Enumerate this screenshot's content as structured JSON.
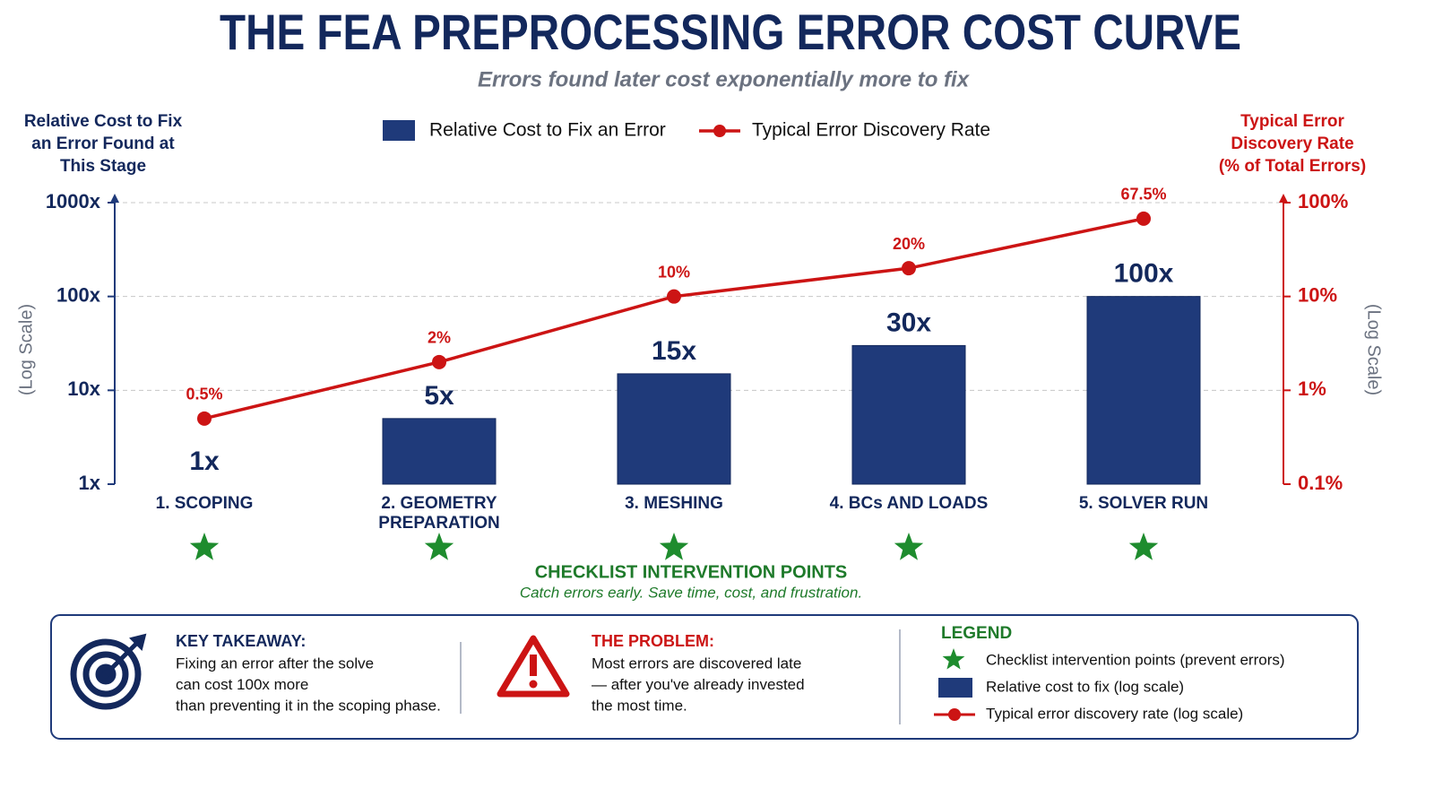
{
  "title": "THE FEA PREPROCESSING ERROR COST CURVE",
  "subtitle": "Errors found later cost exponentially more to fix",
  "chart_data": {
    "type": "combo",
    "y_label": [
      "Relative Cost to Fix",
      "an Error Found at",
      "This Stage"
    ],
    "y2_label": [
      "Typical Error",
      "Discovery Rate",
      "(% of Total Errors)"
    ],
    "scale_note": "(Log Scale)",
    "log_scale": true,
    "grid": true,
    "categories": [
      [
        "1. SCOPING"
      ],
      [
        "2. GEOMETRY",
        "PREPARATION"
      ],
      [
        "3. MESHING"
      ],
      [
        "4. BCs AND LOADS"
      ],
      [
        "5. SOLVER RUN"
      ]
    ],
    "series": [
      {
        "name": "Relative Cost to Fix an Error",
        "type": "bar",
        "color": "#1f3a7a",
        "values": [
          1,
          5,
          15,
          30,
          100
        ],
        "value_labels": [
          "1x",
          "5x",
          "15x",
          "30x",
          "100x"
        ]
      },
      {
        "name": "Typical Error Discovery Rate",
        "type": "line",
        "axis": "y2",
        "color": "#cc1414",
        "values": [
          0.5,
          2,
          10,
          20,
          67.5
        ],
        "value_labels": [
          "0.5%",
          "2%",
          "10%",
          "20%",
          "67.5%"
        ]
      }
    ],
    "ylim": [
      1,
      1000
    ],
    "yticks": [
      {
        "value": 1,
        "label": "1x"
      },
      {
        "value": 10,
        "label": "10x"
      },
      {
        "value": 100,
        "label": "100x"
      },
      {
        "value": 1000,
        "label": "1000x"
      }
    ],
    "y2lim": [
      0.1,
      100
    ],
    "y2ticks": [
      {
        "value": 0.1,
        "label": "0.1%"
      },
      {
        "value": 1,
        "label": "1%"
      },
      {
        "value": 10,
        "label": "10%"
      },
      {
        "value": 100,
        "label": "100%"
      }
    ]
  },
  "checklist": {
    "title": "CHECKLIST INTERVENTION POINTS",
    "subtitle": "Catch errors early. Save time, cost, and frustration."
  },
  "takeaway": {
    "title": "KEY TAKEAWAY:",
    "lines": [
      "Fixing an error after the solve",
      "can cost 100x more",
      "than preventing it in the scoping phase."
    ]
  },
  "problem": {
    "title": "THE PROBLEM:",
    "lines": [
      "Most errors are discovered late",
      "— after you've already invested",
      "the most time."
    ]
  },
  "legend": {
    "title": "LEGEND",
    "items": [
      "Checklist intervention points (prevent errors)",
      "Relative cost to fix (log scale)",
      "Typical error discovery rate (log scale)"
    ]
  }
}
